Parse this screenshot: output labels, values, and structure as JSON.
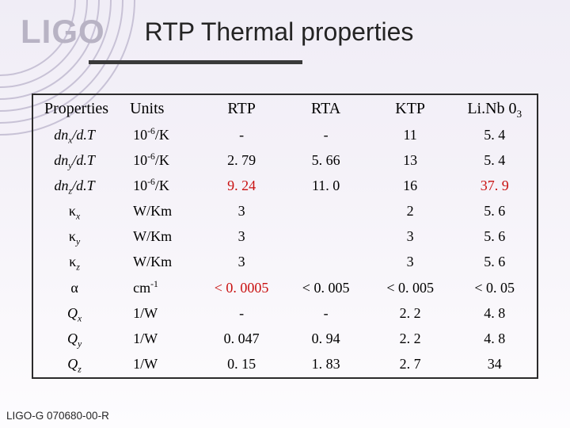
{
  "logo": "LIGO",
  "title": "RTP Thermal properties",
  "footer": "LIGO-G 070680-00-R",
  "columns": [
    "Properties",
    "Units",
    "RTP",
    "RTA",
    "KTP",
    "Li.Nb 0"
  ],
  "linb_sub": "3",
  "rows": [
    {
      "prop_html": "dn<span class='sub'>x</span>/d.T",
      "units_html": "10<span class='sup'>-6</span>/K",
      "rtp": {
        "v": "-"
      },
      "rta": {
        "v": "-"
      },
      "ktp": {
        "v": "11"
      },
      "linb": {
        "v": "5. 4"
      }
    },
    {
      "prop_html": "dn<span class='sub'>y</span>/d.T",
      "units_html": "10<span class='sup'>-6</span>/K",
      "rtp": {
        "v": "2. 79"
      },
      "rta": {
        "v": "5. 66"
      },
      "ktp": {
        "v": "13"
      },
      "linb": {
        "v": "5. 4"
      }
    },
    {
      "prop_html": "dn<span class='sub'>z</span>/d.T",
      "units_html": "10<span class='sup'>-6</span>/K",
      "rtp": {
        "v": "9. 24",
        "red": true
      },
      "rta": {
        "v": "11. 0"
      },
      "ktp": {
        "v": "16"
      },
      "linb": {
        "v": "37. 9",
        "red": true
      }
    },
    {
      "prop_html": "<span class='greek'>κ</span><span class='sub'>x</span>",
      "units_html": "W/Km",
      "rtp": {
        "v": "3"
      },
      "rta": {
        "v": ""
      },
      "ktp": {
        "v": "2"
      },
      "linb": {
        "v": "5. 6"
      }
    },
    {
      "prop_html": "<span class='greek'>κ</span><span class='sub'>y</span>",
      "units_html": "W/Km",
      "rtp": {
        "v": "3"
      },
      "rta": {
        "v": ""
      },
      "ktp": {
        "v": "3"
      },
      "linb": {
        "v": "5. 6"
      }
    },
    {
      "prop_html": "<span class='greek'>κ</span><span class='sub'>z</span>",
      "units_html": "W/Km",
      "rtp": {
        "v": "3"
      },
      "rta": {
        "v": ""
      },
      "ktp": {
        "v": "3"
      },
      "linb": {
        "v": "5. 6"
      }
    },
    {
      "prop_html": "<span class='greek'>α</span>",
      "units_html": "cm<span class='sup'>-1</span>",
      "rtp": {
        "v": "< 0. 0005",
        "red": true
      },
      "rta": {
        "v": "< 0. 005"
      },
      "ktp": {
        "v": "< 0. 005"
      },
      "linb": {
        "v": "< 0. 05"
      }
    },
    {
      "prop_html": "Q<span class='sub'>x</span>",
      "units_html": "1/W",
      "rtp": {
        "v": "-"
      },
      "rta": {
        "v": "-"
      },
      "ktp": {
        "v": "2. 2"
      },
      "linb": {
        "v": "4. 8"
      }
    },
    {
      "prop_html": "Q<span class='sub'>y</span>",
      "units_html": "1/W",
      "rtp": {
        "v": "0. 047"
      },
      "rta": {
        "v": "0. 94"
      },
      "ktp": {
        "v": "2. 2"
      },
      "linb": {
        "v": "4. 8"
      }
    },
    {
      "prop_html": "Q<span class='sub'>z</span>",
      "units_html": "1/W",
      "rtp": {
        "v": "0. 15"
      },
      "rta": {
        "v": "1. 83"
      },
      "ktp": {
        "v": "2. 7"
      },
      "linb": {
        "v": "34"
      }
    }
  ],
  "style": {
    "red_color": "#c91111",
    "text_color": "#1f1f1f",
    "border_color": "#2b2b2b",
    "bg_gradient_start": "#f0edf6",
    "bg_gradient_end": "#fdfcfe",
    "logo_color": "#b8b3c4",
    "arcs_color": "#c8c2d6",
    "title_fontsize": 32,
    "header_fontsize": 20,
    "cell_fontsize": 18,
    "footer_fontsize": 13.5
  }
}
